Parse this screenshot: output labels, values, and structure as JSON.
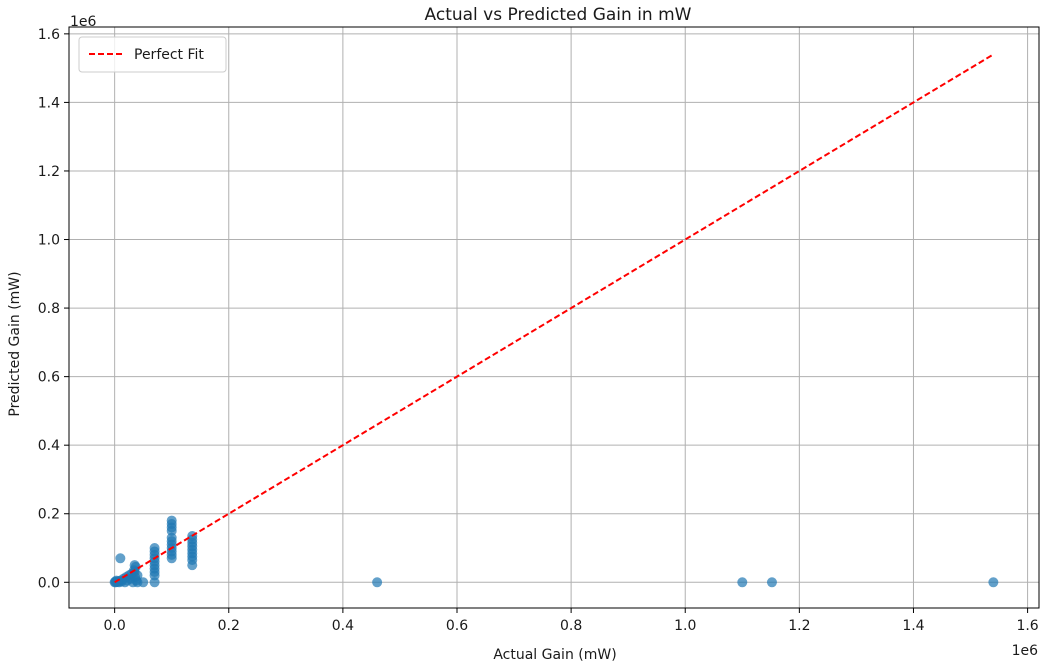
{
  "chart_data": {
    "type": "scatter",
    "title": "Actual vs Predicted Gain in mW",
    "xlabel": "Actual Gain (mW)",
    "ylabel": "Predicted Gain (mW)",
    "x_offset_label": "1e6",
    "y_offset_label": "1e6",
    "xlim": [
      -80000,
      1620000
    ],
    "ylim": [
      -75000,
      1620000
    ],
    "xticks": [
      0,
      200000,
      400000,
      600000,
      800000,
      1000000,
      1200000,
      1400000,
      1600000
    ],
    "xtick_labels": [
      "0.0",
      "0.2",
      "0.4",
      "0.6",
      "0.8",
      "1.0",
      "1.2",
      "1.4",
      "1.6"
    ],
    "yticks": [
      0,
      200000,
      400000,
      600000,
      800000,
      1000000,
      1200000,
      1400000,
      1600000
    ],
    "ytick_labels": [
      "0.0",
      "0.2",
      "0.4",
      "0.6",
      "0.8",
      "1.0",
      "1.2",
      "1.4",
      "1.6"
    ],
    "grid": true,
    "legend": {
      "position": "top-left",
      "entries": [
        {
          "label": "Perfect Fit",
          "color": "#ff0000",
          "style": "dashed"
        }
      ]
    },
    "colors": {
      "points": "#1f77b4",
      "fit_line": "#ff0000",
      "grid": "#b0b0b0"
    },
    "series": [
      {
        "kind": "scatter",
        "points": [
          [
            0,
            0
          ],
          [
            1000,
            2000
          ],
          [
            2000,
            0
          ],
          [
            3000,
            5000
          ],
          [
            5000,
            1000
          ],
          [
            6000,
            3000
          ],
          [
            8000,
            0
          ],
          [
            10000,
            5000
          ],
          [
            12000,
            2000
          ],
          [
            15000,
            10000
          ],
          [
            18000,
            0
          ],
          [
            10000,
            70000
          ],
          [
            20000,
            15000
          ],
          [
            22000,
            5000
          ],
          [
            25000,
            20000
          ],
          [
            28000,
            10000
          ],
          [
            30000,
            25000
          ],
          [
            32000,
            0
          ],
          [
            34000,
            35000
          ],
          [
            35000,
            50000
          ],
          [
            35000,
            30000
          ],
          [
            36000,
            15000
          ],
          [
            37000,
            45000
          ],
          [
            38000,
            5000
          ],
          [
            40000,
            0
          ],
          [
            40000,
            20000
          ],
          [
            50000,
            0
          ],
          [
            70000,
            0
          ],
          [
            70000,
            20000
          ],
          [
            70000,
            30000
          ],
          [
            70000,
            40000
          ],
          [
            70000,
            50000
          ],
          [
            70000,
            60000
          ],
          [
            70000,
            70000
          ],
          [
            70000,
            80000
          ],
          [
            70000,
            90000
          ],
          [
            70000,
            100000
          ],
          [
            100000,
            70000
          ],
          [
            100000,
            80000
          ],
          [
            100000,
            90000
          ],
          [
            100000,
            100000
          ],
          [
            100000,
            110000
          ],
          [
            100000,
            120000
          ],
          [
            100000,
            130000
          ],
          [
            100000,
            150000
          ],
          [
            100000,
            160000
          ],
          [
            100000,
            170000
          ],
          [
            100000,
            180000
          ],
          [
            136000,
            50000
          ],
          [
            136000,
            65000
          ],
          [
            136000,
            75000
          ],
          [
            136000,
            85000
          ],
          [
            136000,
            95000
          ],
          [
            136000,
            105000
          ],
          [
            136000,
            115000
          ],
          [
            136000,
            125000
          ],
          [
            136000,
            135000
          ],
          [
            460000,
            0
          ],
          [
            1100000,
            0
          ],
          [
            1152000,
            0
          ],
          [
            1540000,
            0
          ]
        ]
      },
      {
        "kind": "line",
        "name": "Perfect Fit",
        "x": [
          0,
          1540000
        ],
        "y": [
          0,
          1540000
        ]
      }
    ]
  }
}
